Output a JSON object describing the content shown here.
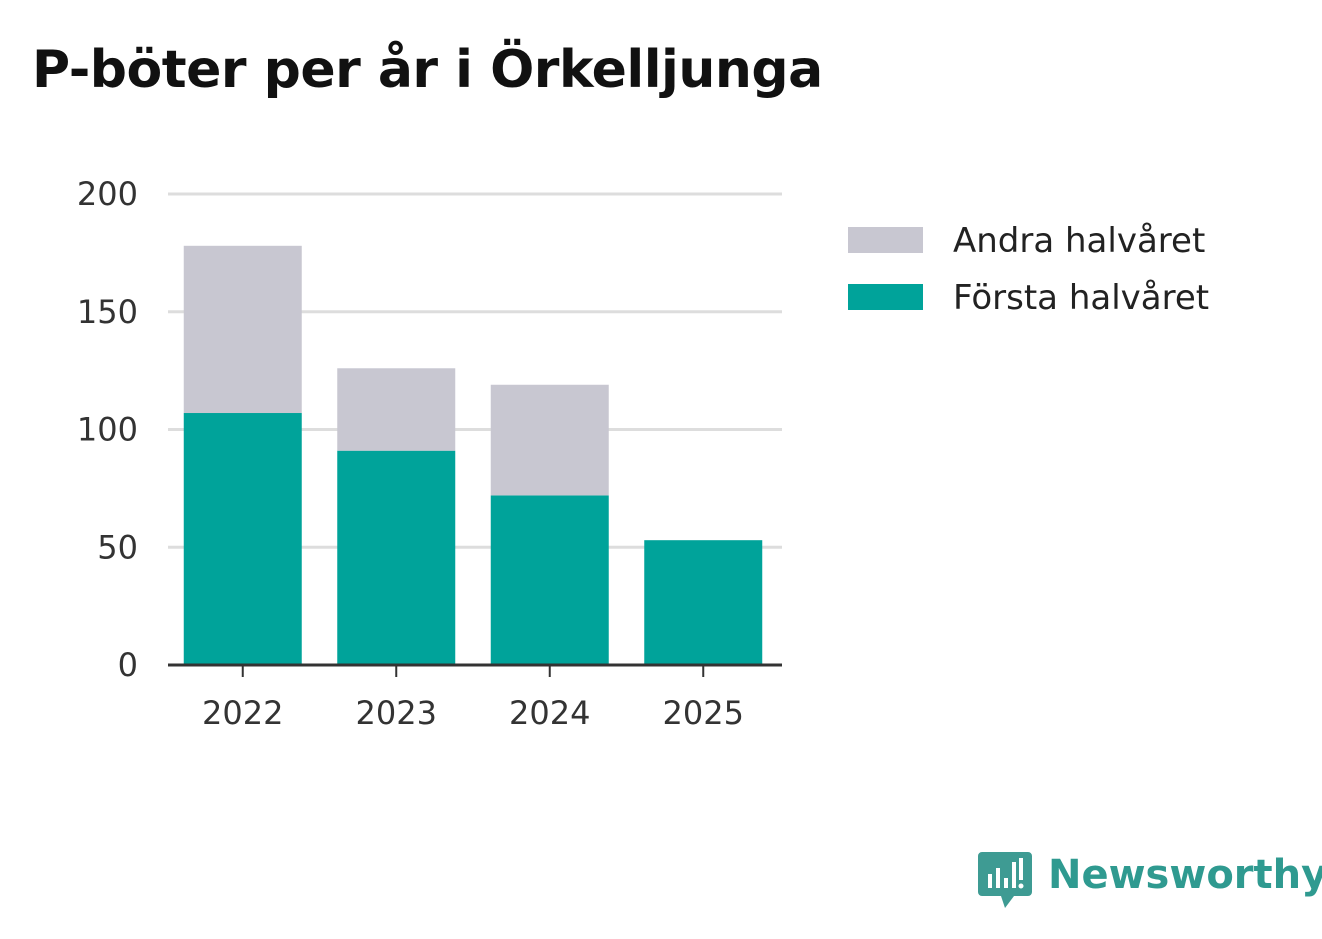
{
  "chart_data": {
    "type": "bar",
    "stacked": true,
    "title": "P-böter per år i Örkelljunga",
    "xlabel": "",
    "ylabel": "",
    "categories": [
      "2022",
      "2023",
      "2024",
      "2025"
    ],
    "series": [
      {
        "name": "Första halvåret",
        "color": "#00a39a",
        "values": [
          107,
          91,
          72,
          53
        ]
      },
      {
        "name": "Andra halvåret",
        "color": "#c8c7d1",
        "values": [
          71,
          35,
          47,
          0
        ]
      }
    ],
    "ylim": [
      0,
      200
    ],
    "yticks": [
      "0",
      "50",
      "100",
      "150",
      "200"
    ],
    "ytick_values": [
      0,
      50,
      100,
      150,
      200
    ],
    "grid": true,
    "legend_position": "right",
    "legend_order": [
      "Andra halvåret",
      "Första halvåret"
    ]
  },
  "branding": {
    "name": "Newsworthy",
    "color": "#2f9a90",
    "icon": "newsworthy-chart-bubble-icon"
  }
}
